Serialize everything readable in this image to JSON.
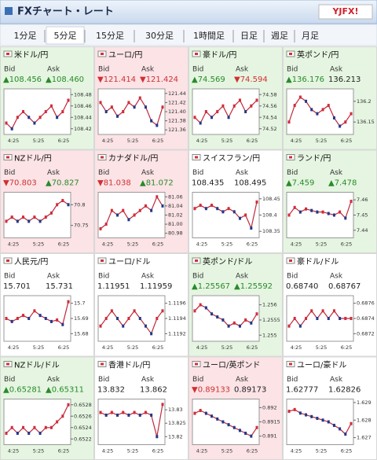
{
  "header": {
    "title": "FXチャート・レート",
    "logo": "YJFX!"
  },
  "tabs": {
    "items": [
      "1分足",
      "5分足",
      "15分足",
      "30分足",
      "1時間足",
      "日足",
      "週足",
      "月足"
    ],
    "selected": 1
  },
  "labels": {
    "bid": "Bid",
    "ask": "Ask"
  },
  "panels": [
    {
      "name": "米ドル/円",
      "bg": "#e5f5e1",
      "bid": {
        "text": "▲108.456",
        "color": "#2a8a2a"
      },
      "ask": {
        "text": "▲108.460",
        "color": "#2a8a2a"
      },
      "xlabels": [
        "4:25",
        "5:25",
        "6:25"
      ],
      "ylim": [
        108.41,
        108.49
      ],
      "yticks": [
        108.48,
        108.46,
        108.44,
        108.42
      ],
      "values": [
        108.43,
        108.42,
        108.44,
        108.45,
        108.44,
        108.43,
        108.44,
        108.45,
        108.46,
        108.44,
        108.45,
        108.47
      ]
    },
    {
      "name": "ユーロ/円",
      "bg": "#fbe3e6",
      "bid": {
        "text": "▼121.414",
        "color": "#d03030"
      },
      "ask": {
        "text": "▼121.424",
        "color": "#d03030"
      },
      "xlabels": [
        "4:25",
        "5:25",
        "6:25"
      ],
      "ylim": [
        121.35,
        121.45
      ],
      "yticks": [
        121.44,
        121.42,
        {
          "value": 121.4,
          "label": "121.40"
        },
        121.38,
        121.36
      ],
      "values": [
        121.42,
        121.4,
        121.41,
        121.39,
        121.4,
        121.42,
        121.41,
        121.43,
        121.41,
        121.38,
        121.37,
        121.41
      ]
    },
    {
      "name": "豪ドル/円",
      "bg": "#e5f5e1",
      "bid": {
        "text": "▲74.569",
        "color": "#2a8a2a"
      },
      "ask": {
        "text": "▼74.594",
        "color": "#d03030"
      },
      "xlabels": [
        "4:25",
        "5:25",
        "6:25"
      ],
      "ylim": [
        74.51,
        74.59
      ],
      "yticks": [
        74.58,
        74.56,
        74.54,
        74.52
      ],
      "values": [
        74.54,
        74.53,
        74.55,
        74.54,
        74.55,
        74.56,
        74.54,
        74.56,
        74.57,
        74.55,
        74.56,
        74.57
      ]
    },
    {
      "name": "英ポンド/円",
      "bg": "#e5f5e1",
      "bid": {
        "text": "▲136.176",
        "color": "#2a8a2a"
      },
      "ask": {
        "text": "136.213",
        "color": "#222222"
      },
      "xlabels": [
        "4:25",
        "5:25",
        "6:25"
      ],
      "ylim": [
        136.12,
        136.23
      ],
      "yticks": [
        136.2,
        136.15
      ],
      "values": [
        136.15,
        136.19,
        136.21,
        136.2,
        136.18,
        136.17,
        136.18,
        136.19,
        136.16,
        136.14,
        136.15,
        136.17
      ]
    },
    {
      "name": "NZドル/円",
      "bg": "#fbe3e6",
      "bid": {
        "text": "▼70.803",
        "color": "#d03030"
      },
      "ask": {
        "text": "▲70.827",
        "color": "#2a8a2a"
      },
      "xlabels": [
        "4:25",
        "5:25",
        "6:25"
      ],
      "ylim": [
        70.72,
        70.83
      ],
      "yticks": [
        70.8,
        70.75
      ],
      "values": [
        70.76,
        70.77,
        70.76,
        70.77,
        70.76,
        70.77,
        70.76,
        70.77,
        70.78,
        70.8,
        70.81,
        70.8
      ]
    },
    {
      "name": "カナダドル/円",
      "bg": "#fbe3e6",
      "bid": {
        "text": "▼81.038",
        "color": "#d03030"
      },
      "ask": {
        "text": "▲81.072",
        "color": "#2a8a2a"
      },
      "xlabels": [
        "4:25",
        "5:25",
        "6:25"
      ],
      "ylim": [
        80.97,
        81.07
      ],
      "yticks": [
        81.06,
        81.04,
        81.02,
        {
          "value": 81,
          "label": "81.00"
        },
        80.98
      ],
      "values": [
        80.99,
        81,
        81.03,
        81.02,
        81.03,
        81.01,
        81.02,
        81.03,
        81.04,
        81.03,
        81.06,
        81.04
      ]
    },
    {
      "name": "スイスフラン/円",
      "bg": "#ffffff",
      "bid": {
        "text": "108.435",
        "color": "#222222"
      },
      "ask": {
        "text": "108.495",
        "color": "#222222"
      },
      "xlabels": [
        "4:25",
        "5:25",
        "6:25"
      ],
      "ylim": [
        108.33,
        108.47
      ],
      "yticks": [
        108.45,
        108.4,
        108.35
      ],
      "values": [
        108.42,
        108.43,
        108.42,
        108.43,
        108.42,
        108.41,
        108.42,
        108.41,
        108.39,
        108.4,
        108.36,
        108.44
      ]
    },
    {
      "name": "ランド/円",
      "bg": "#e5f5e1",
      "bid": {
        "text": "▲7.459",
        "color": "#2a8a2a"
      },
      "ask": {
        "text": "▲7.478",
        "color": "#2a8a2a"
      },
      "xlabels": [
        "4:25",
        "5:25",
        "6:25"
      ],
      "ylim": [
        7.435,
        7.465
      ],
      "yticks": [
        7.46,
        7.45,
        7.44
      ],
      "values": [
        7.45,
        7.455,
        7.452,
        7.454,
        7.453,
        7.452,
        7.452,
        7.451,
        7.45,
        7.452,
        7.448,
        7.459
      ]
    },
    {
      "name": "人民元/円",
      "bg": "#ffffff",
      "bid": {
        "text": "15.701",
        "color": "#222222"
      },
      "ask": {
        "text": "15.731",
        "color": "#222222"
      },
      "xlabels": [
        "4:25",
        "5:25",
        "6:25"
      ],
      "ylim": [
        15.675,
        15.705
      ],
      "yticks": [
        15.7,
        15.69,
        15.68
      ],
      "values": [
        15.69,
        15.688,
        15.69,
        15.692,
        15.69,
        15.695,
        15.692,
        15.69,
        15.688,
        15.689,
        15.686,
        15.701
      ]
    },
    {
      "name": "ユーロ/ドル",
      "bg": "#ffffff",
      "bid": {
        "text": "1.11951",
        "color": "#222222"
      },
      "ask": {
        "text": "1.11959",
        "color": "#222222"
      },
      "xlabels": [
        "4:25",
        "5:25",
        "6:25"
      ],
      "ylim": [
        1.1191,
        1.1197
      ],
      "yticks": [
        1.1196,
        1.1194,
        1.1192
      ],
      "values": [
        1.1193,
        1.1194,
        1.1195,
        1.1194,
        1.1193,
        1.1194,
        1.1195,
        1.1194,
        1.1193,
        1.1192,
        1.1194,
        1.1195
      ]
    },
    {
      "name": "英ポンド/ドル",
      "bg": "#e5f5e1",
      "bid": {
        "text": "▲1.25567",
        "color": "#2a8a2a"
      },
      "ask": {
        "text": "▲1.25592",
        "color": "#2a8a2a"
      },
      "xlabels": [
        "4:25",
        "5:25",
        "6:25"
      ],
      "ylim": [
        1.2548,
        1.2563
      ],
      "yticks": [
        1.256,
        1.2555,
        1.255
      ],
      "values": [
        1.2558,
        1.256,
        1.2559,
        1.2557,
        1.2556,
        1.2555,
        1.2553,
        1.2554,
        1.2553,
        1.2555,
        1.2554,
        1.2557
      ]
    },
    {
      "name": "豪ドル/ドル",
      "bg": "#ffffff",
      "bid": {
        "text": "0.68740",
        "color": "#222222"
      },
      "ask": {
        "text": "0.68767",
        "color": "#222222"
      },
      "xlabels": [
        "4:25",
        "5:25",
        "6:25"
      ],
      "ylim": [
        0.6871,
        0.6877
      ],
      "yticks": [
        0.6876,
        0.6874,
        0.6872
      ],
      "values": [
        0.6873,
        0.6874,
        0.6873,
        0.6874,
        0.6875,
        0.6874,
        0.6875,
        0.6874,
        0.6875,
        0.6874,
        0.6874,
        0.6874
      ]
    },
    {
      "name": "NZドル/ドル",
      "bg": "#e5f5e1",
      "bid": {
        "text": "▲0.65281",
        "color": "#2a8a2a"
      },
      "ask": {
        "text": "▲0.65311",
        "color": "#2a8a2a"
      },
      "xlabels": [
        "4:25",
        "5:25",
        "6:25"
      ],
      "ylim": [
        0.6521,
        0.6529
      ],
      "yticks": [
        0.6528,
        0.6526,
        0.6524,
        0.6522
      ],
      "values": [
        0.6523,
        0.6524,
        0.6523,
        0.6524,
        0.6523,
        0.6524,
        0.6523,
        0.6524,
        0.6524,
        0.6525,
        0.6526,
        0.6528
      ]
    },
    {
      "name": "香港ドル/円",
      "bg": "#ffffff",
      "bid": {
        "text": "13.832",
        "color": "#222222"
      },
      "ask": {
        "text": "13.862",
        "color": "#222222"
      },
      "xlabels": [
        "4:25",
        "5:25",
        "6:25"
      ],
      "ylim": [
        13.817,
        13.834
      ],
      "yticks": [
        13.83,
        13.825,
        13.82
      ],
      "values": [
        13.829,
        13.828,
        13.829,
        13.828,
        13.829,
        13.828,
        13.829,
        13.828,
        13.829,
        13.828,
        13.82,
        13.832
      ]
    },
    {
      "name": "ユーロ/英ポンド",
      "bg": "#fbe3e6",
      "bid": {
        "text": "▼0.89133",
        "color": "#d03030"
      },
      "ask": {
        "text": "0.89173",
        "color": "#222222"
      },
      "xlabels": [
        "4:25",
        "5:25",
        "6:25"
      ],
      "ylim": [
        0.8907,
        0.8923
      ],
      "yticks": [
        0.892,
        0.8915,
        0.891
      ],
      "values": [
        0.8918,
        0.8919,
        0.8918,
        0.8917,
        0.8916,
        0.8915,
        0.8914,
        0.8913,
        0.8912,
        0.8911,
        0.891,
        0.8913
      ]
    },
    {
      "name": "ユーロ/豪ドル",
      "bg": "#ffffff",
      "bid": {
        "text": "1.62777",
        "color": "#222222"
      },
      "ask": {
        "text": "1.62826",
        "color": "#222222"
      },
      "xlabels": [
        "4:25",
        "5:25",
        "6:25"
      ],
      "ylim": [
        1.6266,
        1.6292
      ],
      "yticks": [
        1.629,
        1.628,
        1.627
      ],
      "values": [
        1.6285,
        1.6286,
        1.6284,
        1.6283,
        1.6282,
        1.6281,
        1.628,
        1.6279,
        1.6277,
        1.6275,
        1.6272,
        1.6278
      ]
    }
  ]
}
